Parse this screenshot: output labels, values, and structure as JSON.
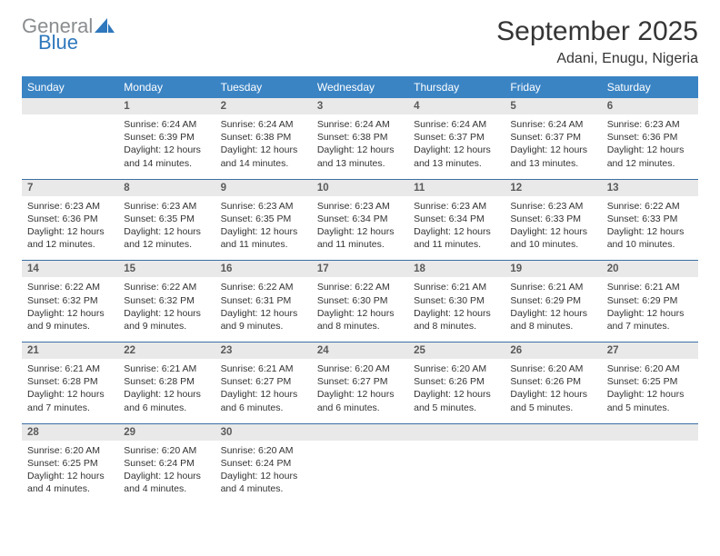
{
  "brand": {
    "general": "General",
    "blue": "Blue"
  },
  "title": "September 2025",
  "location": "Adani, Enugu, Nigeria",
  "colors": {
    "header_bg": "#3b84c4",
    "header_text": "#ffffff",
    "daynum_bg": "#e9e9e9",
    "row_border": "#3b6fa5",
    "logo_gray": "#8a8d8f",
    "logo_blue": "#2f78bd",
    "text": "#333333",
    "background": "#ffffff"
  },
  "fonts": {
    "title_pt": 30,
    "location_pt": 16,
    "dayheader_pt": 12,
    "daynum_pt": 11.5,
    "body_pt": 10.5
  },
  "day_headers": [
    "Sunday",
    "Monday",
    "Tuesday",
    "Wednesday",
    "Thursday",
    "Friday",
    "Saturday"
  ],
  "weeks": [
    [
      null,
      {
        "n": "1",
        "sr": "6:24 AM",
        "ss": "6:39 PM",
        "dl": "12 hours and 14 minutes."
      },
      {
        "n": "2",
        "sr": "6:24 AM",
        "ss": "6:38 PM",
        "dl": "12 hours and 14 minutes."
      },
      {
        "n": "3",
        "sr": "6:24 AM",
        "ss": "6:38 PM",
        "dl": "12 hours and 13 minutes."
      },
      {
        "n": "4",
        "sr": "6:24 AM",
        "ss": "6:37 PM",
        "dl": "12 hours and 13 minutes."
      },
      {
        "n": "5",
        "sr": "6:24 AM",
        "ss": "6:37 PM",
        "dl": "12 hours and 13 minutes."
      },
      {
        "n": "6",
        "sr": "6:23 AM",
        "ss": "6:36 PM",
        "dl": "12 hours and 12 minutes."
      }
    ],
    [
      {
        "n": "7",
        "sr": "6:23 AM",
        "ss": "6:36 PM",
        "dl": "12 hours and 12 minutes."
      },
      {
        "n": "8",
        "sr": "6:23 AM",
        "ss": "6:35 PM",
        "dl": "12 hours and 12 minutes."
      },
      {
        "n": "9",
        "sr": "6:23 AM",
        "ss": "6:35 PM",
        "dl": "12 hours and 11 minutes."
      },
      {
        "n": "10",
        "sr": "6:23 AM",
        "ss": "6:34 PM",
        "dl": "12 hours and 11 minutes."
      },
      {
        "n": "11",
        "sr": "6:23 AM",
        "ss": "6:34 PM",
        "dl": "12 hours and 11 minutes."
      },
      {
        "n": "12",
        "sr": "6:23 AM",
        "ss": "6:33 PM",
        "dl": "12 hours and 10 minutes."
      },
      {
        "n": "13",
        "sr": "6:22 AM",
        "ss": "6:33 PM",
        "dl": "12 hours and 10 minutes."
      }
    ],
    [
      {
        "n": "14",
        "sr": "6:22 AM",
        "ss": "6:32 PM",
        "dl": "12 hours and 9 minutes."
      },
      {
        "n": "15",
        "sr": "6:22 AM",
        "ss": "6:32 PM",
        "dl": "12 hours and 9 minutes."
      },
      {
        "n": "16",
        "sr": "6:22 AM",
        "ss": "6:31 PM",
        "dl": "12 hours and 9 minutes."
      },
      {
        "n": "17",
        "sr": "6:22 AM",
        "ss": "6:30 PM",
        "dl": "12 hours and 8 minutes."
      },
      {
        "n": "18",
        "sr": "6:21 AM",
        "ss": "6:30 PM",
        "dl": "12 hours and 8 minutes."
      },
      {
        "n": "19",
        "sr": "6:21 AM",
        "ss": "6:29 PM",
        "dl": "12 hours and 8 minutes."
      },
      {
        "n": "20",
        "sr": "6:21 AM",
        "ss": "6:29 PM",
        "dl": "12 hours and 7 minutes."
      }
    ],
    [
      {
        "n": "21",
        "sr": "6:21 AM",
        "ss": "6:28 PM",
        "dl": "12 hours and 7 minutes."
      },
      {
        "n": "22",
        "sr": "6:21 AM",
        "ss": "6:28 PM",
        "dl": "12 hours and 6 minutes."
      },
      {
        "n": "23",
        "sr": "6:21 AM",
        "ss": "6:27 PM",
        "dl": "12 hours and 6 minutes."
      },
      {
        "n": "24",
        "sr": "6:20 AM",
        "ss": "6:27 PM",
        "dl": "12 hours and 6 minutes."
      },
      {
        "n": "25",
        "sr": "6:20 AM",
        "ss": "6:26 PM",
        "dl": "12 hours and 5 minutes."
      },
      {
        "n": "26",
        "sr": "6:20 AM",
        "ss": "6:26 PM",
        "dl": "12 hours and 5 minutes."
      },
      {
        "n": "27",
        "sr": "6:20 AM",
        "ss": "6:25 PM",
        "dl": "12 hours and 5 minutes."
      }
    ],
    [
      {
        "n": "28",
        "sr": "6:20 AM",
        "ss": "6:25 PM",
        "dl": "12 hours and 4 minutes."
      },
      {
        "n": "29",
        "sr": "6:20 AM",
        "ss": "6:24 PM",
        "dl": "12 hours and 4 minutes."
      },
      {
        "n": "30",
        "sr": "6:20 AM",
        "ss": "6:24 PM",
        "dl": "12 hours and 4 minutes."
      },
      null,
      null,
      null,
      null
    ]
  ],
  "labels": {
    "sunrise": "Sunrise:",
    "sunset": "Sunset:",
    "daylight": "Daylight:"
  }
}
